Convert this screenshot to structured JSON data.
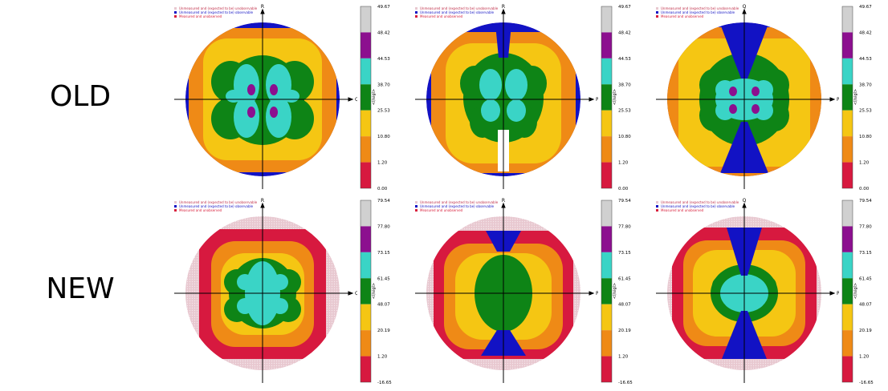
{
  "row_labels": {
    "old": "OLD",
    "new": "NEW"
  },
  "legend_items": [
    {
      "label": "Unmeasured and (expected to be) unobservable",
      "color": "#e8c8d0"
    },
    {
      "label": "Unmeasured and (expected to be) observable",
      "color": "#1212c4"
    },
    {
      "label": "Measured and unobserved",
      "color": "#d8203c"
    }
  ],
  "colorbar_title": "<I/sigI>",
  "band_colors": [
    "#d7193f",
    "#ef8a16",
    "#f5c613",
    "#0e8416",
    "#3ad4c6",
    "#8c0f8f",
    "#d0d0d0"
  ],
  "chart_data": [
    {
      "type": "heatmap",
      "row": "OLD",
      "projection": "pole figure",
      "axes": {
        "vertical": "R",
        "horizontal": "Q"
      },
      "colorbar": {
        "ticks": [
          "49.67",
          "48.42",
          "44.53",
          "38.70",
          "25.53",
          "10.80",
          "1.20",
          "0.00"
        ]
      },
      "pattern": "four-leaf"
    },
    {
      "type": "heatmap",
      "row": "OLD",
      "projection": "pole figure",
      "axes": {
        "vertical": "R",
        "horizontal": "P"
      },
      "colorbar": {
        "ticks": [
          "49.67",
          "48.42",
          "44.53",
          "38.70",
          "25.53",
          "10.80",
          "1.20",
          "0.00"
        ]
      },
      "pattern": "vertical-bands"
    },
    {
      "type": "heatmap",
      "row": "OLD",
      "projection": "pole figure",
      "axes": {
        "vertical": "Q",
        "horizontal": "P"
      },
      "colorbar": {
        "ticks": [
          "49.67",
          "48.42",
          "44.53",
          "38.70",
          "25.53",
          "10.80",
          "1.20",
          "0.00"
        ]
      },
      "pattern": "hourglass"
    },
    {
      "type": "heatmap",
      "row": "NEW",
      "projection": "pole figure",
      "axes": {
        "vertical": "R",
        "horizontal": "Q"
      },
      "colorbar": {
        "ticks": [
          "79.54",
          "77.80",
          "73.15",
          "61.45",
          "48.07",
          "20.19",
          "1.20",
          "-16.65"
        ]
      },
      "pattern": "four-leaf"
    },
    {
      "type": "heatmap",
      "row": "NEW",
      "projection": "pole figure",
      "axes": {
        "vertical": "R",
        "horizontal": "P"
      },
      "colorbar": {
        "ticks": [
          "79.54",
          "77.80",
          "73.15",
          "61.45",
          "48.07",
          "20.19",
          "1.20",
          "-16.65"
        ]
      },
      "pattern": "vertical-bands"
    },
    {
      "type": "heatmap",
      "row": "NEW",
      "projection": "pole figure",
      "axes": {
        "vertical": "Q",
        "horizontal": "P"
      },
      "colorbar": {
        "ticks": [
          "79.54",
          "77.80",
          "73.15",
          "61.45",
          "48.07",
          "20.19",
          "1.20",
          "-16.65"
        ]
      },
      "pattern": "hourglass"
    }
  ]
}
